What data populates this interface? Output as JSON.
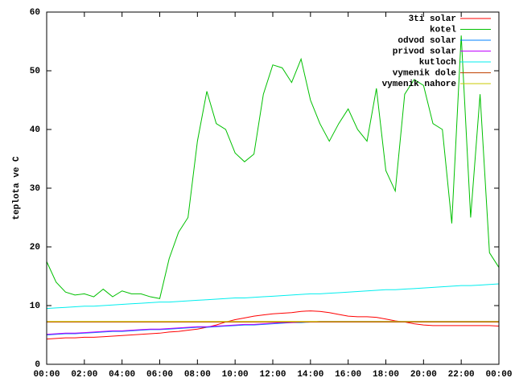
{
  "chart_data": {
    "type": "line",
    "y_label": "teplota ve C",
    "x": [
      0,
      0.5,
      1,
      1.5,
      2,
      2.5,
      3,
      3.5,
      4,
      4.5,
      5,
      5.5,
      6,
      6.5,
      7,
      7.5,
      8,
      8.5,
      9,
      9.5,
      10,
      10.5,
      11,
      11.5,
      12,
      12.5,
      13,
      13.5,
      14,
      14.5,
      15,
      15.5,
      16,
      16.5,
      17,
      17.5,
      18,
      18.5,
      19,
      19.5,
      20,
      20.5,
      21,
      21.5,
      22,
      22.5,
      23,
      23.5,
      24
    ],
    "xlim": [
      0,
      24
    ],
    "xticks": [
      {
        "value": 0,
        "label": "00:00"
      },
      {
        "value": 2,
        "label": "02:00"
      },
      {
        "value": 4,
        "label": "04:00"
      },
      {
        "value": 6,
        "label": "06:00"
      },
      {
        "value": 8,
        "label": "08:00"
      },
      {
        "value": 10,
        "label": "10:00"
      },
      {
        "value": 12,
        "label": "12:00"
      },
      {
        "value": 14,
        "label": "14:00"
      },
      {
        "value": 16,
        "label": "16:00"
      },
      {
        "value": 18,
        "label": "18:00"
      },
      {
        "value": 20,
        "label": "20:00"
      },
      {
        "value": 22,
        "label": "22:00"
      },
      {
        "value": 24,
        "label": "00:00"
      }
    ],
    "ylim": [
      0,
      60
    ],
    "yticks": [
      0,
      10,
      20,
      30,
      40,
      50,
      60
    ],
    "grid": false,
    "legend": "top-right",
    "series": [
      {
        "name": "3ti solar",
        "color": "#ff0000",
        "values": [
          4.3,
          4.4,
          4.5,
          4.5,
          4.6,
          4.6,
          4.7,
          4.8,
          4.9,
          5.0,
          5.1,
          5.2,
          5.3,
          5.5,
          5.6,
          5.8,
          6.0,
          6.3,
          6.7,
          7.2,
          7.6,
          7.9,
          8.2,
          8.4,
          8.6,
          8.7,
          8.8,
          9.0,
          9.1,
          9.0,
          8.8,
          8.5,
          8.2,
          8.1,
          8.1,
          8.0,
          7.7,
          7.4,
          7.2,
          6.9,
          6.7,
          6.6,
          6.6,
          6.6,
          6.6,
          6.6,
          6.6,
          6.6,
          6.5
        ]
      },
      {
        "name": "kotel",
        "color": "#00c000",
        "values": [
          17.5,
          14,
          12.3,
          11.8,
          12,
          11.5,
          12.8,
          11.5,
          12.5,
          12,
          12,
          11.5,
          11.2,
          18,
          22.5,
          25,
          38,
          46.5,
          41,
          40,
          36,
          34.5,
          35.8,
          46,
          51,
          50.5,
          48,
          52,
          45,
          41,
          38,
          41,
          43.5,
          40,
          38,
          47,
          33,
          29.5,
          46,
          48.5,
          47.5,
          41,
          40,
          24,
          56,
          25,
          46,
          19,
          16.5
        ]
      },
      {
        "name": "odvod solar",
        "color": "#0080ff",
        "values": [
          5.0,
          5.1,
          5.2,
          5.2,
          5.3,
          5.4,
          5.5,
          5.6,
          5.6,
          5.7,
          5.8,
          5.9,
          5.9,
          6.0,
          6.1,
          6.2,
          6.3,
          6.3,
          6.4,
          6.5,
          6.6,
          6.7,
          6.7,
          6.8,
          6.9,
          7.0,
          7.1,
          7.1,
          7.2,
          7.3,
          7.3,
          7.3,
          7.3,
          7.3,
          7.3,
          7.3,
          7.3,
          7.3,
          7.3,
          7.3,
          7.3,
          7.3,
          7.3,
          7.3,
          7.3,
          7.3,
          7.3,
          7.3,
          7.3
        ]
      },
      {
        "name": "privod solar",
        "color": "#c000ff",
        "values": [
          5.1,
          5.2,
          5.3,
          5.3,
          5.4,
          5.5,
          5.6,
          5.7,
          5.7,
          5.8,
          5.9,
          6.0,
          6.0,
          6.1,
          6.2,
          6.3,
          6.4,
          6.4,
          6.5,
          6.6,
          6.7,
          6.8,
          6.8,
          6.9,
          7.0,
          7.1,
          7.1,
          7.2,
          7.2,
          7.3,
          7.3,
          7.3,
          7.3,
          7.3,
          7.3,
          7.3,
          7.3,
          7.3,
          7.3,
          7.3,
          7.3,
          7.3,
          7.3,
          7.3,
          7.3,
          7.3,
          7.3,
          7.3,
          7.3
        ]
      },
      {
        "name": "kutloch",
        "color": "#00eeee",
        "values": [
          9.5,
          9.6,
          9.7,
          9.8,
          9.9,
          9.9,
          10.0,
          10.1,
          10.2,
          10.3,
          10.4,
          10.5,
          10.6,
          10.6,
          10.7,
          10.8,
          10.9,
          11.0,
          11.1,
          11.2,
          11.3,
          11.3,
          11.4,
          11.5,
          11.6,
          11.7,
          11.8,
          11.9,
          12.0,
          12.0,
          12.1,
          12.2,
          12.3,
          12.4,
          12.5,
          12.6,
          12.7,
          12.7,
          12.8,
          12.9,
          13.0,
          13.1,
          13.2,
          13.3,
          13.4,
          13.4,
          13.5,
          13.6,
          13.7
        ]
      },
      {
        "name": "vymenik dole",
        "color": "#c04000",
        "values": [
          7.2,
          7.2,
          7.2,
          7.2,
          7.2,
          7.2,
          7.2,
          7.2,
          7.2,
          7.2,
          7.2,
          7.2,
          7.2,
          7.2,
          7.2,
          7.2,
          7.2,
          7.2,
          7.2,
          7.2,
          7.2,
          7.2,
          7.2,
          7.2,
          7.2,
          7.2,
          7.2,
          7.2,
          7.2,
          7.2,
          7.2,
          7.2,
          7.2,
          7.2,
          7.2,
          7.2,
          7.2,
          7.2,
          7.2,
          7.2,
          7.2,
          7.2,
          7.2,
          7.2,
          7.2,
          7.2,
          7.2,
          7.2,
          7.2
        ]
      },
      {
        "name": "vymenik nahore",
        "color": "#c8c800",
        "values": [
          7.3,
          7.3,
          7.3,
          7.3,
          7.3,
          7.3,
          7.3,
          7.3,
          7.3,
          7.3,
          7.3,
          7.3,
          7.3,
          7.3,
          7.3,
          7.3,
          7.3,
          7.3,
          7.3,
          7.3,
          7.3,
          7.3,
          7.3,
          7.3,
          7.3,
          7.3,
          7.3,
          7.3,
          7.3,
          7.3,
          7.3,
          7.3,
          7.3,
          7.3,
          7.3,
          7.3,
          7.3,
          7.3,
          7.3,
          7.3,
          7.3,
          7.3,
          7.3,
          7.3,
          7.3,
          7.3,
          7.3,
          7.3,
          7.3
        ]
      }
    ]
  }
}
